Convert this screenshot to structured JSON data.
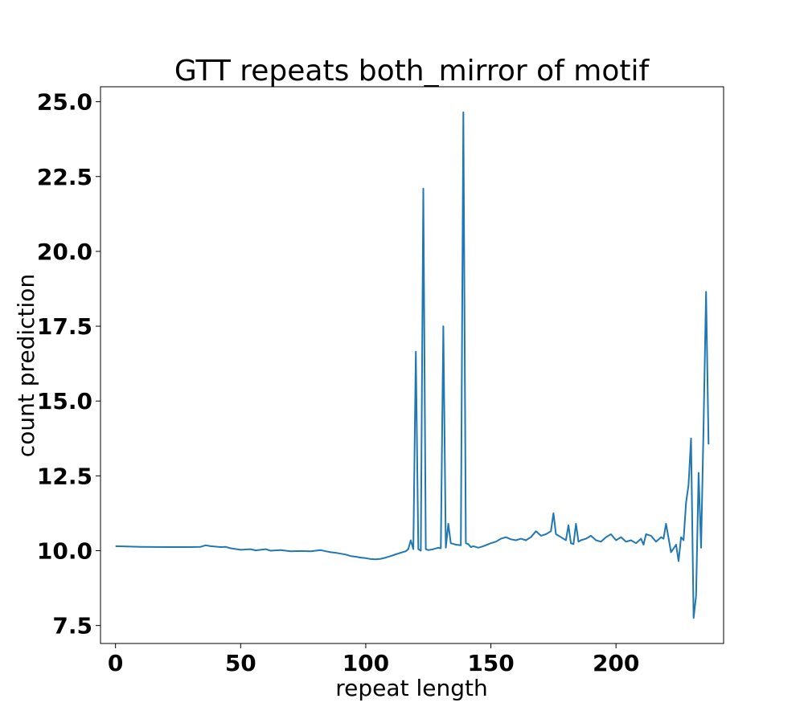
{
  "chart_data": {
    "type": "line",
    "title": "GTT repeats both_mirror of motif",
    "xlabel": "repeat length",
    "ylabel": "count prediction",
    "xlim": [
      -6,
      243
    ],
    "ylim": [
      6.9,
      25.5
    ],
    "xticks": [
      {
        "value": 0,
        "label": "0"
      },
      {
        "value": 50,
        "label": "50"
      },
      {
        "value": 100,
        "label": "100"
      },
      {
        "value": 150,
        "label": "150"
      },
      {
        "value": 200,
        "label": "200"
      }
    ],
    "yticks": [
      {
        "value": 7.5,
        "label": "7.5"
      },
      {
        "value": 10.0,
        "label": "10.0"
      },
      {
        "value": 12.5,
        "label": "12.5"
      },
      {
        "value": 15.0,
        "label": "15.0"
      },
      {
        "value": 17.5,
        "label": "17.5"
      },
      {
        "value": 20.0,
        "label": "20.0"
      },
      {
        "value": 22.5,
        "label": "22.5"
      },
      {
        "value": 25.0,
        "label": "25.0"
      }
    ],
    "grid": false,
    "series": [
      {
        "color": "#1f77b4",
        "x": [
          0,
          10,
          20,
          30,
          34,
          36,
          38,
          42,
          44,
          46,
          50,
          54,
          56,
          58,
          60,
          62,
          66,
          70,
          74,
          78,
          80,
          82,
          84,
          86,
          88,
          90,
          92,
          94,
          96,
          98,
          100,
          102,
          104,
          106,
          108,
          110,
          112,
          114,
          116,
          117,
          118,
          119,
          120,
          121,
          122,
          123,
          124,
          125,
          127,
          129,
          130,
          131,
          132,
          133,
          134,
          136,
          138,
          139,
          140,
          141,
          142,
          143,
          145,
          147,
          150,
          152,
          154,
          156,
          158,
          160,
          162,
          164,
          166,
          168,
          170,
          172,
          174,
          175,
          176,
          178,
          180,
          181,
          182,
          183,
          184,
          185,
          186,
          188,
          190,
          192,
          194,
          196,
          198,
          200,
          202,
          204,
          206,
          208,
          210,
          211,
          212,
          214,
          216,
          218,
          219,
          220,
          222,
          224,
          225,
          226,
          227,
          228,
          229,
          230,
          231,
          232,
          233,
          234,
          235,
          236,
          237
        ],
        "y": [
          10.15,
          10.13,
          10.12,
          10.12,
          10.13,
          10.18,
          10.15,
          10.12,
          10.13,
          10.08,
          10.03,
          10.05,
          10.01,
          10.03,
          10.05,
          10.0,
          10.02,
          9.98,
          9.99,
          9.98,
          10.0,
          10.02,
          9.98,
          9.95,
          9.93,
          9.9,
          9.87,
          9.82,
          9.8,
          9.77,
          9.75,
          9.72,
          9.71,
          9.73,
          9.77,
          9.82,
          9.88,
          9.93,
          9.98,
          10.05,
          10.35,
          10.05,
          16.65,
          10.05,
          10.0,
          22.1,
          10.05,
          10.02,
          10.05,
          10.1,
          10.08,
          17.5,
          10.1,
          10.9,
          10.25,
          10.2,
          10.18,
          24.65,
          10.25,
          10.22,
          10.12,
          10.15,
          10.1,
          10.15,
          10.25,
          10.3,
          10.4,
          10.45,
          10.38,
          10.35,
          10.4,
          10.35,
          10.45,
          10.65,
          10.5,
          10.55,
          10.65,
          11.25,
          10.55,
          10.45,
          10.35,
          10.85,
          10.25,
          10.22,
          10.9,
          10.3,
          10.35,
          10.4,
          10.5,
          10.35,
          10.3,
          10.45,
          10.55,
          10.35,
          10.45,
          10.3,
          10.35,
          10.25,
          10.4,
          10.2,
          10.55,
          10.5,
          10.3,
          10.45,
          10.4,
          10.9,
          9.95,
          10.2,
          9.65,
          10.45,
          10.35,
          11.6,
          12.2,
          13.75,
          7.75,
          8.5,
          12.6,
          10.1,
          14.2,
          18.65,
          13.55
        ]
      }
    ]
  }
}
